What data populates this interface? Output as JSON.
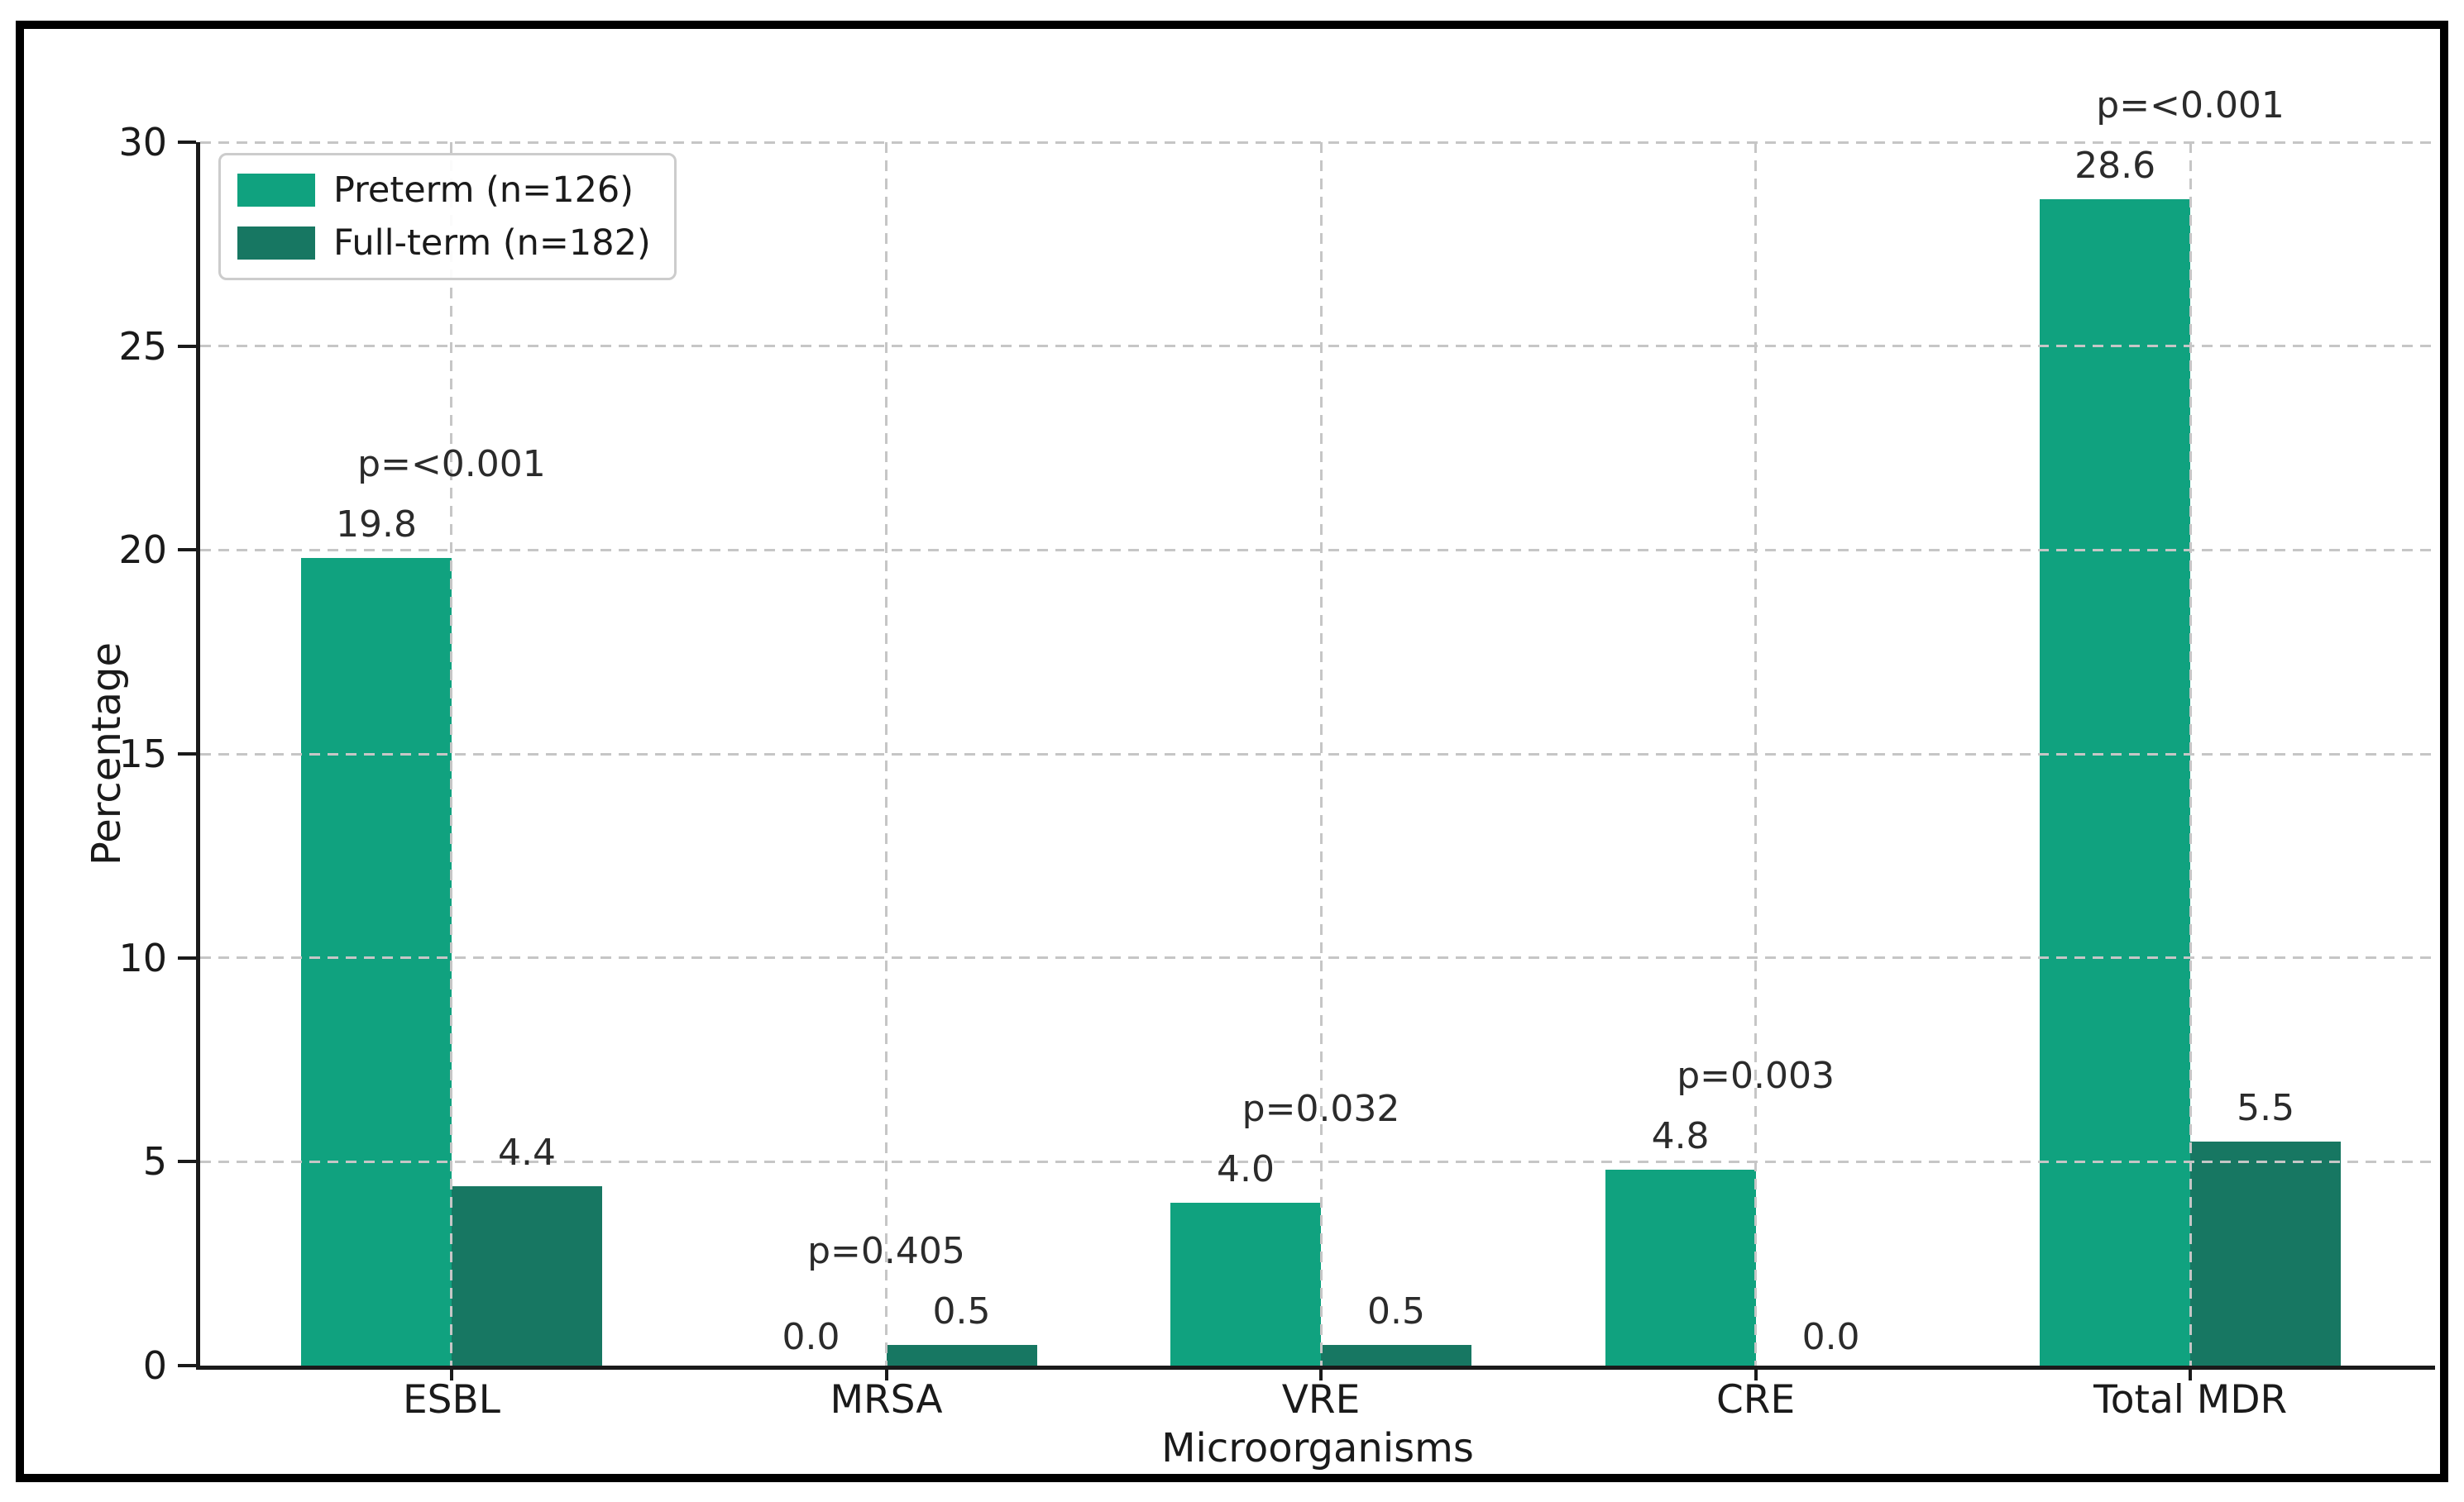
{
  "chart_data": {
    "type": "bar",
    "title": "",
    "xlabel": "Microorganisms",
    "ylabel": "Percentage",
    "ylim": [
      0,
      30
    ],
    "yticks": [
      0,
      5,
      10,
      15,
      20,
      25,
      30
    ],
    "grid": "dashed, drawn above bars",
    "legend_position": "upper left",
    "categories": [
      "ESBL",
      "MRSA",
      "VRE",
      "CRE",
      "Total MDR"
    ],
    "series": [
      {
        "name": "Preterm (n=126)",
        "color": "#10A27F",
        "values": [
          19.8,
          0.0,
          4.0,
          4.8,
          28.6
        ]
      },
      {
        "name": "Full-term (n=182)",
        "color": "#177762",
        "values": [
          4.4,
          0.5,
          0.5,
          0.0,
          5.5
        ]
      }
    ],
    "p_values": [
      "p=<0.001",
      "p=0.405",
      "p=0.032",
      "p=0.003",
      "p=<0.001"
    ],
    "frame_color": "#000000",
    "axis_color": "#1a1a1a",
    "gridline_color": "#c6c6c6"
  }
}
